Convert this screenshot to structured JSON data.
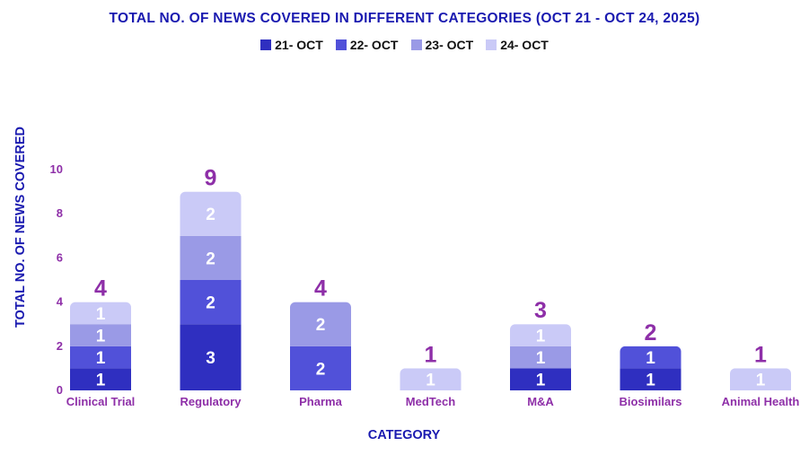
{
  "colors": {
    "title": "#1a1ab0",
    "axis_text": "#8e2fa8",
    "total_label": "#8e2fa8",
    "segment_text": "#ffffff",
    "series": [
      "#2f2fc0",
      "#5151d9",
      "#9a9ae6",
      "#cacaf7"
    ]
  },
  "chart_data": {
    "type": "bar",
    "stacked": true,
    "title": "TOTAL NO. OF NEWS COVERED IN DIFFERENT CATEGORIES (OCT 21 - OCT 24, 2025)",
    "xlabel": "CATEGORY",
    "ylabel": "TOTAL  NO. OF NEWS COVERED",
    "ylim": [
      0,
      10
    ],
    "yticks": [
      0,
      2,
      4,
      6,
      8,
      10
    ],
    "grid": false,
    "legend_position": "top-center",
    "categories": [
      "Clinical Trial",
      "Regulatory",
      "Pharma",
      "MedTech",
      "M&A",
      "Biosimilars",
      "Animal Health"
    ],
    "series": [
      {
        "name": "21- OCT",
        "values": [
          1,
          3,
          0,
          0,
          1,
          1,
          0
        ]
      },
      {
        "name": "22- OCT",
        "values": [
          1,
          2,
          2,
          0,
          0,
          1,
          0
        ]
      },
      {
        "name": "23- OCT",
        "values": [
          1,
          2,
          2,
          0,
          1,
          0,
          0
        ]
      },
      {
        "name": "24- OCT",
        "values": [
          1,
          2,
          0,
          1,
          1,
          0,
          1
        ]
      }
    ],
    "totals": [
      4,
      9,
      4,
      1,
      3,
      2,
      1
    ]
  }
}
